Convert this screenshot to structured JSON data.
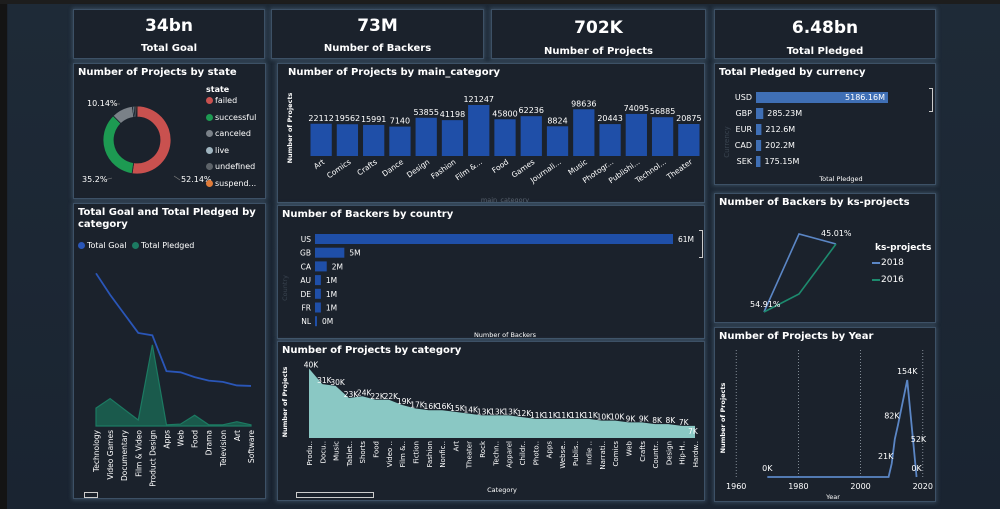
{
  "kpis": [
    {
      "value": "34bn",
      "label": "Total Goal"
    },
    {
      "value": "73M",
      "label": "Number of Backers"
    },
    {
      "value": "702K",
      "label": "Number of Projects"
    },
    {
      "value": "6.48bn",
      "label": "Total Pledged"
    }
  ],
  "colors": {
    "accent_blue": "#1f4fa8",
    "teal": "#1b8a6b",
    "area_teal": "#8ac8c4",
    "line_blue": "#5b86c5"
  },
  "chart_data": [
    {
      "id": "state",
      "type": "pie",
      "title": "Number of Projects by state",
      "legend_title": "state",
      "legend_position": "right",
      "slices": [
        {
          "label": "failed",
          "value": 52.14,
          "color": "#c9514f"
        },
        {
          "label": "successful",
          "value": 35.2,
          "color": "#1d9a52"
        },
        {
          "label": "canceled",
          "value": 10.14,
          "color": "#7a8188"
        },
        {
          "label": "live",
          "value": 0.74,
          "color": "#9fb4bf"
        },
        {
          "label": "undefined",
          "value": 0.94,
          "color": "#5d6369"
        },
        {
          "label": "suspended",
          "value": 0.49,
          "color": "#e07b39"
        }
      ],
      "legend_labels": [
        "failed",
        "successful",
        "canceled",
        "live",
        "undefined",
        "suspend..."
      ],
      "data_labels": [
        "52.14%",
        "35.2%",
        "10.14%"
      ]
    },
    {
      "id": "main_category",
      "type": "bar",
      "title": "Number of Projects by main_category",
      "xlabel": "main_category",
      "ylabel": "Number of Projects",
      "categories": [
        "Art",
        "Comics",
        "Crafts",
        "Dance",
        "Design",
        "Fashion",
        "Film &...",
        "Food",
        "Games",
        "Journali...",
        "Music",
        "Photogr...",
        "Publishi...",
        "Technol...",
        "Theater"
      ],
      "values": [
        22112,
        19562,
        15991,
        7140,
        53855,
        41198,
        121247,
        45800,
        62236,
        8824,
        98636,
        20443,
        74095,
        56885,
        20875
      ],
      "value_labels": [
        "22112",
        "19562",
        "15991",
        "7140",
        "53855",
        "41198",
        "121247",
        "45800",
        "62236",
        "8824",
        "98636",
        "20443",
        "74095",
        "56885",
        "20875"
      ]
    },
    {
      "id": "currency",
      "type": "bar",
      "orientation": "horizontal",
      "title": "Total Pledged by currency",
      "xlabel": "Total Pledged",
      "ylabel": "Currency",
      "categories": [
        "USD",
        "GBP",
        "EUR",
        "CAD",
        "SEK"
      ],
      "values": [
        5186.16,
        285.23,
        212.6,
        202.2,
        175.15
      ],
      "value_labels": [
        "5186.16M",
        "285.23M",
        "212.6M",
        "202.2M",
        "175.15M"
      ],
      "unit": "M"
    },
    {
      "id": "goal_pledged",
      "type": "area",
      "title": "Total Goal and Total Pledged by category",
      "legend_position": "top-left",
      "categories": [
        "Technology",
        "Video Games",
        "Documentary",
        "Film & Video",
        "Product Design",
        "Apps",
        "Web",
        "Food",
        "Drama",
        "Television",
        "Art",
        "Software"
      ],
      "series": [
        {
          "name": "Total Goal",
          "color": "#2a56b8",
          "values": [
            6.4,
            5.5,
            4.7,
            3.9,
            3.8,
            2.3,
            2.25,
            2.05,
            1.9,
            1.85,
            1.7,
            1.68
          ]
        },
        {
          "name": "Total Pledged",
          "color": "#1c7a62",
          "values": [
            0.75,
            1.15,
            0.7,
            0.25,
            3.4,
            0.05,
            0.08,
            0.45,
            0.05,
            0.05,
            0.18,
            0.05
          ]
        }
      ],
      "ylim": [
        0,
        7
      ]
    },
    {
      "id": "country",
      "type": "bar",
      "orientation": "horizontal",
      "title": "Number of Backers by country",
      "xlabel": "Number of Backers",
      "ylabel": "Country",
      "categories": [
        "US",
        "GB",
        "CA",
        "AU",
        "DE",
        "FR",
        "NL"
      ],
      "values": [
        61,
        5,
        2,
        1,
        1,
        1,
        0.3
      ],
      "value_labels": [
        "61M",
        "5M",
        "2M",
        "1M",
        "1M",
        "1M",
        "0M"
      ],
      "unit": "M"
    },
    {
      "id": "category",
      "type": "area",
      "title": "Number of Projects by category",
      "xlabel": "Category",
      "ylabel": "Number of Projects",
      "categories": [
        "Produ..",
        "Docu..",
        "Music",
        "Tablet..",
        "Shorts",
        "Food",
        "Video ..",
        "Film &..",
        "Fiction",
        "Fashion",
        "Nonfic..",
        "Art",
        "Theater",
        "Rock",
        "Techn..",
        "Apparel",
        "Childr..",
        "Photo..",
        "Apps",
        "Webse..",
        "Publis..",
        "Indie ..",
        "Narrati..",
        "Comics",
        "Web",
        "Crafts",
        "Countr..",
        "Design",
        "Hip-H..",
        "Hardw.."
      ],
      "values": [
        40,
        31,
        30,
        23,
        24,
        22,
        22,
        19,
        17,
        16,
        16,
        15,
        14,
        13,
        13,
        13,
        12,
        11,
        11,
        11,
        11,
        11,
        10,
        10,
        9,
        9,
        8,
        8,
        7,
        7
      ],
      "value_labels": [
        "40K",
        "31K",
        "30K",
        "23K",
        "24K",
        "22K",
        "22K",
        "19K",
        "17K",
        "16K",
        "16K",
        "15K",
        "14K",
        "13K",
        "13K",
        "13K",
        "12K",
        "11K",
        "11K",
        "11K",
        "11K",
        "11K",
        "10K",
        "10K",
        "9K",
        "9K",
        "8K",
        "8K",
        "7K",
        "7K"
      ],
      "unit": "K"
    },
    {
      "id": "ks_projects",
      "type": "line",
      "title": "Number of Backers by ks-projects",
      "legend_title": "ks-projects",
      "legend_position": "right",
      "series": [
        {
          "name": "2018",
          "color": "#5b86c5"
        },
        {
          "name": "2016",
          "color": "#1d8a6e"
        }
      ],
      "data_labels": [
        "45.01%",
        "54.91%"
      ]
    },
    {
      "id": "year",
      "type": "line",
      "title": "Number of Projects by Year",
      "xlabel": "Year",
      "ylabel": "Number of Projects",
      "x": [
        1970,
        2009,
        2010,
        2011,
        2012,
        2015,
        2017,
        2018
      ],
      "values": [
        0,
        0,
        21,
        60,
        82,
        154,
        52,
        0
      ],
      "data_labels": [
        {
          "x": 1970,
          "label": "0K"
        },
        {
          "x": 2010,
          "label": "21K"
        },
        {
          "x": 2012,
          "label": "82K"
        },
        {
          "x": 2015,
          "label": "154K"
        },
        {
          "x": 2017,
          "label": "52K"
        },
        {
          "x": 2018,
          "label": "0K"
        }
      ],
      "xticks": [
        "1960",
        "1980",
        "2000",
        "2020"
      ],
      "xlim": [
        1958,
        2022
      ],
      "ylim": [
        0,
        170
      ],
      "grid": "vertical-dotted"
    }
  ]
}
